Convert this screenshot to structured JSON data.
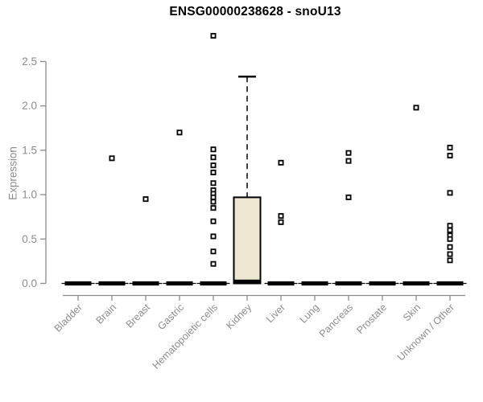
{
  "chart_data": {
    "type": "boxplot",
    "title": "ENSG00000238628 - snoU13",
    "ylabel": "Expression",
    "xlabel": "",
    "ylim": [
      0,
      2.5
    ],
    "yticks": [
      0.0,
      0.5,
      1.0,
      1.5,
      2.0,
      2.5
    ],
    "grid": false,
    "legend": "none",
    "categories": [
      "Bladder",
      "Brain",
      "Breast",
      "Gastric",
      "Hematopoietic cells",
      "Kidney",
      "Liver",
      "Lung",
      "Pancreas",
      "Prostate",
      "Skin",
      "Unknown / Other"
    ],
    "boxes": [
      {
        "category": "Bladder",
        "median": 0,
        "q1": 0,
        "q3": 0,
        "whisker_low": 0,
        "whisker_high": 0,
        "outliers": []
      },
      {
        "category": "Brain",
        "median": 0,
        "q1": 0,
        "q3": 0,
        "whisker_low": 0,
        "whisker_high": 0,
        "outliers": [
          1.41
        ]
      },
      {
        "category": "Breast",
        "median": 0,
        "q1": 0,
        "q3": 0,
        "whisker_low": 0,
        "whisker_high": 0,
        "outliers": [
          0.95
        ]
      },
      {
        "category": "Gastric",
        "median": 0,
        "q1": 0,
        "q3": 0,
        "whisker_low": 0,
        "whisker_high": 0,
        "outliers": [
          1.7
        ]
      },
      {
        "category": "Hematopoietic cells",
        "median": 0,
        "q1": 0,
        "q3": 0,
        "whisker_low": 0,
        "whisker_high": 0,
        "outliers": [
          2.79,
          1.51,
          1.42,
          1.33,
          1.25,
          1.13,
          1.05,
          1.01,
          0.97,
          0.92,
          0.85,
          0.7,
          0.53,
          0.36,
          0.22
        ]
      },
      {
        "category": "Kidney",
        "median": 0.02,
        "q1": 0,
        "q3": 0.97,
        "whisker_low": 0,
        "whisker_high": 2.33,
        "outliers": []
      },
      {
        "category": "Liver",
        "median": 0,
        "q1": 0,
        "q3": 0,
        "whisker_low": 0,
        "whisker_high": 0,
        "outliers": [
          1.36,
          0.76,
          0.69
        ]
      },
      {
        "category": "Lung",
        "median": 0,
        "q1": 0,
        "q3": 0,
        "whisker_low": 0,
        "whisker_high": 0,
        "outliers": []
      },
      {
        "category": "Pancreas",
        "median": 0,
        "q1": 0,
        "q3": 0,
        "whisker_low": 0,
        "whisker_high": 0,
        "outliers": [
          1.47,
          1.38,
          0.97
        ]
      },
      {
        "category": "Prostate",
        "median": 0,
        "q1": 0,
        "q3": 0,
        "whisker_low": 0,
        "whisker_high": 0,
        "outliers": []
      },
      {
        "category": "Skin",
        "median": 0,
        "q1": 0,
        "q3": 0,
        "whisker_low": 0,
        "whisker_high": 0,
        "outliers": [
          1.98
        ]
      },
      {
        "category": "Unknown / Other",
        "median": 0,
        "q1": 0,
        "q3": 0,
        "whisker_low": 0,
        "whisker_high": 0,
        "outliers": [
          1.53,
          1.44,
          1.02,
          0.65,
          0.6,
          0.54,
          0.5,
          0.41,
          0.33,
          0.26
        ]
      }
    ]
  },
  "colors": {
    "background": "#ffffff",
    "title": "#000000",
    "axis": "#8c8c8c",
    "tick_label": "#8c8c8c",
    "box_fill": "#EEE8D2",
    "box_border": "#000000",
    "point_stroke": "#000000",
    "point_fill": "#ffffff"
  }
}
